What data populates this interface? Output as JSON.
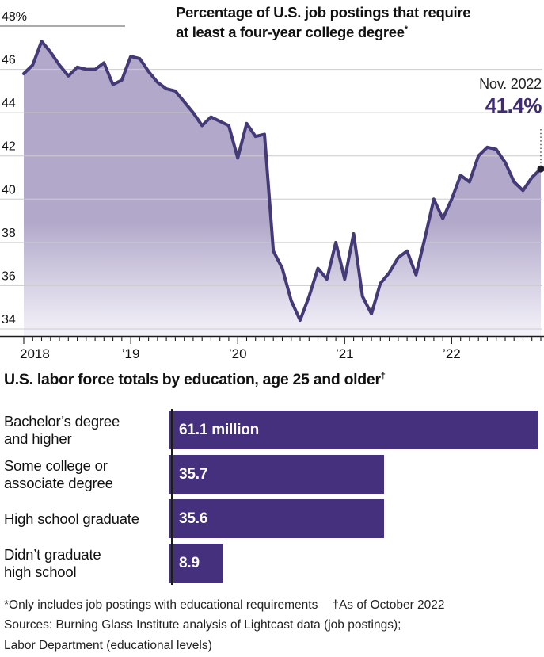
{
  "chart_data": [
    {
      "type": "area",
      "title": "Percentage of U.S. job postings that require at least a four-year college degree*",
      "title_lines": [
        "Percentage of U.S. job postings that require",
        "at least a four-year college degree"
      ],
      "title_note_marker": "*",
      "x_start": "2018-01",
      "x_end": "2022-11",
      "x_tick_labels": [
        "2018",
        "’19",
        "’20",
        "’21",
        "’22"
      ],
      "y_tick_labels": [
        "48%",
        "46",
        "44",
        "42",
        "40",
        "38",
        "36",
        "34"
      ],
      "y_tick_values": [
        48,
        46,
        44,
        42,
        40,
        38,
        36,
        34
      ],
      "ylim": [
        34,
        48
      ],
      "grid": true,
      "legend": "none",
      "annotation": {
        "label": "Nov. 2022",
        "value": "41.4%",
        "value_numeric": 41.4
      },
      "series": [
        {
          "name": "Share of U.S. job postings requiring a four-year degree",
          "frequency": "monthly",
          "values": [
            45.8,
            46.2,
            47.3,
            46.8,
            46.2,
            45.7,
            46.1,
            46.0,
            46.0,
            46.3,
            45.3,
            45.5,
            46.6,
            46.5,
            45.9,
            45.4,
            45.1,
            45.0,
            44.5,
            44.0,
            43.4,
            43.8,
            43.6,
            43.4,
            41.9,
            43.5,
            42.9,
            43.0,
            37.6,
            36.8,
            35.3,
            34.4,
            35.5,
            36.8,
            36.3,
            38.0,
            36.3,
            38.4,
            35.5,
            34.7,
            36.1,
            36.6,
            37.3,
            37.6,
            36.5,
            38.2,
            40.0,
            39.1,
            40.0,
            41.1,
            40.8,
            42.0,
            42.4,
            42.3,
            41.7,
            40.8,
            40.4,
            41.0,
            41.4
          ]
        }
      ],
      "colors": {
        "line": "#453a78",
        "fill_top": "#b2a9ca",
        "fill_bottom": "#f5f3fa",
        "annotation_value": "#3e2b72",
        "gridline": "#cccccc",
        "top_gridline": "#8f8f8f",
        "axis": "#1b1b1b",
        "end_dot": "#1f1b2e"
      }
    },
    {
      "type": "bar",
      "orientation": "horizontal",
      "title": "U.S. labor force totals by education, age 25 and older",
      "title_note_marker": "†",
      "categories": [
        "Bachelor’s degree and higher",
        "Some college or associate degree",
        "High school graduate",
        "Didn’t graduate high school"
      ],
      "category_lines": [
        [
          "Bachelor’s degree",
          "and higher"
        ],
        [
          "Some college or",
          "associate degree"
        ],
        [
          "High school graduate"
        ],
        [
          "Didn’t graduate",
          "high school"
        ]
      ],
      "values": [
        61.1,
        35.7,
        35.6,
        8.9
      ],
      "value_labels": [
        "61.1 million",
        "35.7",
        "35.6",
        "8.9"
      ],
      "unit": "million people",
      "xlim": [
        0,
        61.1
      ],
      "bar_color": "#45307d"
    }
  ],
  "footnotes": {
    "note1": "*Only includes job postings with educational requirements",
    "note2": "†As of October 2022",
    "sources_line1": "Sources: Burning Glass Institute analysis of Lightcast data (job postings);",
    "sources_line2": "Labor Department (educational levels)"
  }
}
